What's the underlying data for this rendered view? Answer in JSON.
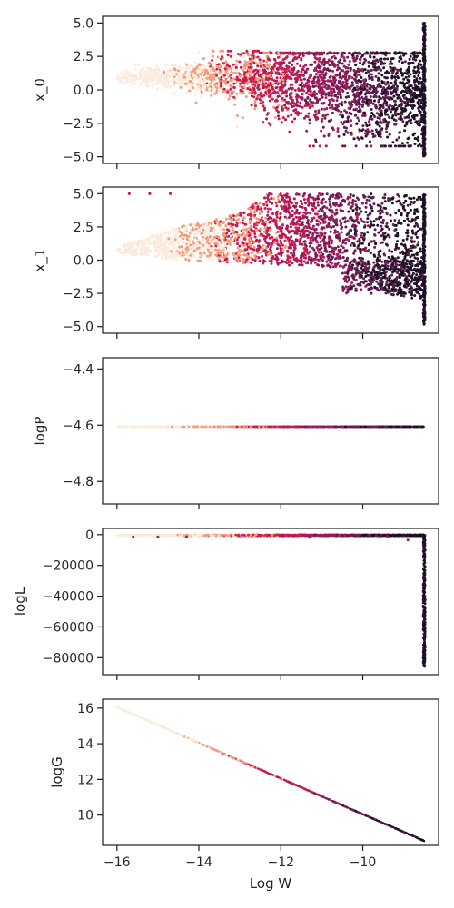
{
  "figure": {
    "xlabel": "Log W",
    "colors": {
      "pale": "#faebdd",
      "orange": "#f19c7c",
      "red": "#cb1b4f",
      "crimson": "#a11a5b",
      "plum": "#611f53",
      "dark": "#1e1126",
      "axis": "#262626"
    }
  },
  "chart_data": [
    {
      "type": "scatter",
      "ylabel": "x_0",
      "xlim": [
        -16.35,
        -8.15
      ],
      "ylim": [
        -5.5,
        5.5
      ],
      "x_ticks": [
        -16,
        -14,
        -12,
        -10
      ],
      "y_ticks": [
        5.0,
        2.5,
        0.0,
        -2.5,
        -5.0
      ],
      "y_tick_labels": [
        "5.0",
        "2.5",
        "0.0",
        "−2.5",
        "−5.0"
      ],
      "x_tick_labels_visible": false,
      "description_points": {
        "band_spread": [
          [
            -16.0,
            0.3
          ],
          [
            -14.5,
            0.6
          ],
          [
            -13,
            1.3
          ],
          [
            -12,
            2.0
          ],
          [
            -11,
            2.3
          ],
          [
            -10,
            2.5
          ],
          [
            -8.5,
            2.7
          ]
        ],
        "vertical_band_x": -8.5,
        "vertical_band_y": [
          -5.0,
          5.0
        ]
      }
    },
    {
      "type": "scatter",
      "ylabel": "x_1",
      "xlim": [
        -16.35,
        -8.15
      ],
      "ylim": [
        -5.5,
        5.5
      ],
      "x_ticks": [
        -16,
        -14,
        -12,
        -10
      ],
      "y_ticks": [
        5.0,
        2.5,
        0.0,
        -2.5,
        -5.0
      ],
      "y_tick_labels": [
        "5.0",
        "2.5",
        "0.0",
        "−2.5",
        "−5.0"
      ],
      "x_tick_labels_visible": false,
      "outliers": [
        [
          -15.7,
          5.0
        ],
        [
          -15.2,
          5.0
        ],
        [
          -14.7,
          5.0
        ]
      ],
      "description_points": {
        "upper_edge": [
          [
            -16.0,
            1.0
          ],
          [
            -14.5,
            2.5
          ],
          [
            -13,
            3.5
          ],
          [
            -12.3,
            5.0
          ],
          [
            -8.5,
            5.0
          ]
        ],
        "lower_edge": [
          [
            -16.0,
            0.5
          ],
          [
            -14.5,
            0.0
          ],
          [
            -13,
            -0.2
          ],
          [
            -10.5,
            -0.6
          ],
          [
            -9.5,
            -2.5
          ],
          [
            -8.5,
            -3.0
          ]
        ],
        "vertical_band_x": -8.5,
        "vertical_band_y": [
          -5.0,
          5.0
        ]
      }
    },
    {
      "type": "scatter",
      "ylabel": "logP",
      "xlim": [
        -16.35,
        -8.15
      ],
      "ylim": [
        -4.88,
        -4.36
      ],
      "x_ticks": [
        -16,
        -14,
        -12,
        -10
      ],
      "y_ticks": [
        -4.4,
        -4.6,
        -4.8
      ],
      "y_tick_labels": [
        "−4.4",
        "−4.6",
        "−4.8"
      ],
      "x_tick_labels_visible": false,
      "line_value": -4.605,
      "x_range": [
        -16.0,
        -8.5
      ]
    },
    {
      "type": "scatter",
      "ylabel": "logL",
      "xlim": [
        -16.35,
        -8.15
      ],
      "ylim": [
        -91000,
        4000
      ],
      "x_ticks": [
        -16,
        -14,
        -12,
        -10
      ],
      "y_ticks": [
        0,
        -20000,
        -40000,
        -60000,
        -80000
      ],
      "y_tick_labels": [
        "0",
        "−20000",
        "−40000",
        "−60000",
        "−80000"
      ],
      "x_tick_labels_visible": false,
      "outliers": [
        [
          -15.6,
          -1500
        ],
        [
          -15.0,
          -1500
        ],
        [
          -14.3,
          -1500
        ],
        [
          -11.3,
          -1500
        ],
        [
          -9.4,
          -1500
        ],
        [
          -8.9,
          -3500
        ]
      ],
      "vertical_band_x": -8.5,
      "vertical_band_y": [
        -86000,
        -500
      ]
    },
    {
      "type": "scatter",
      "ylabel": "logG",
      "xlim": [
        -16.35,
        -8.15
      ],
      "ylim": [
        8.3,
        16.5
      ],
      "x_ticks": [
        -16,
        -14,
        -12,
        -10
      ],
      "x_tick_labels": [
        "−16",
        "−14",
        "−12",
        "−10"
      ],
      "y_ticks": [
        16,
        14,
        12,
        10
      ],
      "y_tick_labels": [
        "16",
        "14",
        "12",
        "10"
      ],
      "x_tick_labels_visible": true,
      "line": [
        [
          -16.0,
          16.05
        ],
        [
          -8.5,
          8.55
        ]
      ]
    }
  ]
}
